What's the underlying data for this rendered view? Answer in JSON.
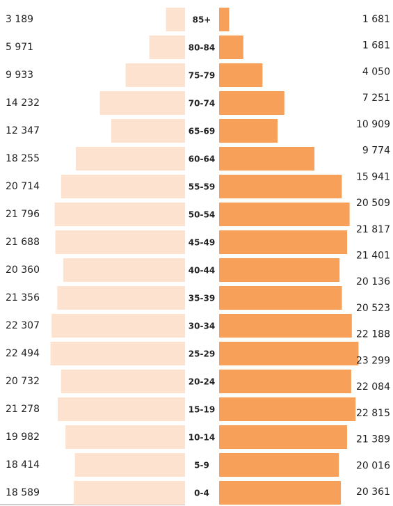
{
  "chart_data": {
    "type": "pyramid",
    "categories": [
      "85+",
      "80-84",
      "75-79",
      "70-74",
      "65-69",
      "60-64",
      "55-59",
      "50-54",
      "45-49",
      "40-44",
      "35-39",
      "30-34",
      "25-29",
      "20-24",
      "15-19",
      "10-14",
      "5-9",
      "0-4"
    ],
    "xlim": [
      0,
      25000
    ],
    "series": [
      {
        "color": "#fde2cf",
        "values": [
          3189,
          5971,
          9933,
          14232,
          12347,
          18255,
          20714,
          21796,
          21688,
          20360,
          21356,
          22307,
          22494,
          20732,
          21278,
          19982,
          18414,
          18589
        ],
        "value_labels": [
          "3 189",
          "5 971",
          "9 933",
          "14 232",
          "12 347",
          "18 255",
          "20 714",
          "21 796",
          "21 688",
          "20 360",
          "21 356",
          "22 307",
          "22 494",
          "20 732",
          "21 278",
          "19 982",
          "18 414",
          "18 589"
        ]
      },
      {
        "color": "#f6a05a",
        "values": [
          1681,
          4050,
          7251,
          10909,
          9774,
          15941,
          20509,
          21817,
          21401,
          20136,
          20523,
          22188,
          23299,
          22084,
          22815,
          21389,
          20016,
          20361
        ],
        "value_labels": [
          "1 681",
          "4 050",
          "7 251",
          "10 909",
          "9 774",
          "15 941",
          "20 509",
          "21 817",
          "21 401",
          "20 136",
          "20 523",
          "22 188",
          "23 299",
          "22 084",
          "22 815",
          "21 389",
          "20 016",
          "20 361"
        ]
      }
    ],
    "annotation": "1 681"
  }
}
